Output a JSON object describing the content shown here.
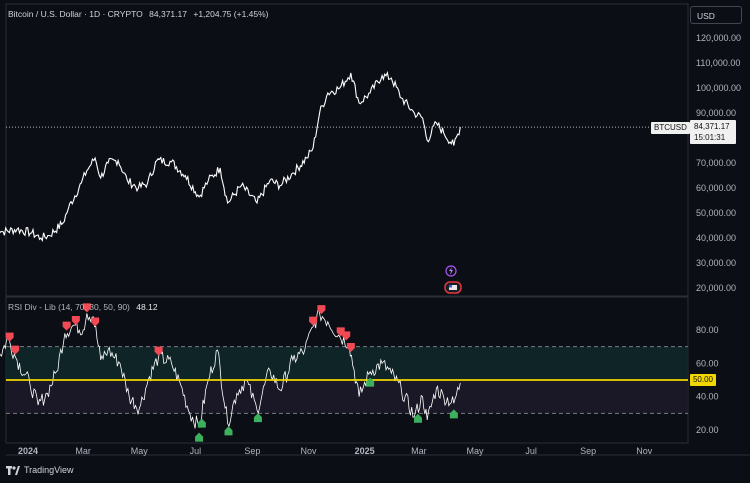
{
  "symbol": {
    "name": "Bitcoin / U.S. Dollar · 1D · CRYPTO",
    "last": "84,371.17",
    "change": "+1,204.75 (+1.45%)",
    "currency": "USD",
    "ticker_label": "BTCUSD",
    "price_label": "84,371.17",
    "countdown": "15:01:31"
  },
  "indicator": {
    "name": "RSI Div - Lib (14, 70, 30, 50, 90)",
    "value": "48.12",
    "level_label": "50.00"
  },
  "footer": {
    "brand": "TradingView"
  },
  "colors": {
    "background": "#0c0e15",
    "price_line": "#ffffff",
    "rsi_line": "#ffffff",
    "rsi_midline": "#f2d600",
    "bear_marker": "#f24a55",
    "bull_marker": "#3cb05c",
    "band_fill": "#0f2a2a"
  },
  "chart_data": [
    {
      "type": "line",
      "series_label": "BTCUSD",
      "x_type": "date",
      "x_ticks": [
        "2024",
        "Mar",
        "May",
        "Jul",
        "Sep",
        "Nov",
        "2025",
        "Mar",
        "May",
        "Jul",
        "Sep",
        "Nov"
      ],
      "x_tick_dates": [
        "2024-01-01",
        "2024-03-01",
        "2024-05-01",
        "2024-07-01",
        "2024-09-01",
        "2024-11-01",
        "2025-01-01",
        "2025-03-01",
        "2025-05-01",
        "2025-07-01",
        "2025-09-01",
        "2025-11-01"
      ],
      "y_ticks": [
        "20,000.00",
        "30,000.00",
        "40,000.00",
        "50,000.00",
        "60,000.00",
        "70,000.00",
        "80,000.00",
        "90,000.00",
        "100,000.00",
        "110,000.00",
        "120,000.00"
      ],
      "ylim": [
        15000,
        125000
      ],
      "points": [
        [
          "2023-11-25",
          43000
        ],
        [
          "2023-12-05",
          42500
        ],
        [
          "2023-12-20",
          43500
        ],
        [
          "2024-01-05",
          42000
        ],
        [
          "2024-01-15",
          40000
        ],
        [
          "2024-01-24",
          41000
        ],
        [
          "2024-02-08",
          46000
        ],
        [
          "2024-02-14",
          52000
        ],
        [
          "2024-02-28",
          62000
        ],
        [
          "2024-03-05",
          67000
        ],
        [
          "2024-03-14",
          72000
        ],
        [
          "2024-03-20",
          64000
        ],
        [
          "2024-03-28",
          70000
        ],
        [
          "2024-04-08",
          71000
        ],
        [
          "2024-04-18",
          63000
        ],
        [
          "2024-04-30",
          60000
        ],
        [
          "2024-05-10",
          62000
        ],
        [
          "2024-05-20",
          71000
        ],
        [
          "2024-06-05",
          70500
        ],
        [
          "2024-06-20",
          65000
        ],
        [
          "2024-07-05",
          56500
        ],
        [
          "2024-07-15",
          63000
        ],
        [
          "2024-07-28",
          68000
        ],
        [
          "2024-08-05",
          54000
        ],
        [
          "2024-08-20",
          61000
        ],
        [
          "2024-09-06",
          54000
        ],
        [
          "2024-09-20",
          63000
        ],
        [
          "2024-10-01",
          61000
        ],
        [
          "2024-10-15",
          66000
        ],
        [
          "2024-10-30",
          72000
        ],
        [
          "2024-11-06",
          76000
        ],
        [
          "2024-11-13",
          90000
        ],
        [
          "2024-11-22",
          98000
        ],
        [
          "2024-12-05",
          100000
        ],
        [
          "2024-12-17",
          106000
        ],
        [
          "2024-12-26",
          94000
        ],
        [
          "2025-01-07",
          98000
        ],
        [
          "2025-01-20",
          105000
        ],
        [
          "2025-01-30",
          104000
        ],
        [
          "2025-02-10",
          96000
        ],
        [
          "2025-02-24",
          90000
        ],
        [
          "2025-03-05",
          88000
        ],
        [
          "2025-03-10",
          79000
        ],
        [
          "2025-03-20",
          86000
        ],
        [
          "2025-03-28",
          82000
        ],
        [
          "2025-04-08",
          77000
        ],
        [
          "2025-04-15",
          84371
        ]
      ],
      "last_value": 84371.17
    },
    {
      "type": "line",
      "series_label": "RSI Div - Lib (14, 70, 30, 50, 90)",
      "x_type": "date",
      "y_ticks": [
        "20.00",
        "40.00",
        "60.00",
        "80.00"
      ],
      "ylim": [
        15,
        95
      ],
      "levels": {
        "upper": 70,
        "lower": 30,
        "mid": 50
      },
      "points": [
        [
          "2023-11-25",
          82
        ],
        [
          "2023-12-02",
          65
        ],
        [
          "2023-12-10",
          75
        ],
        [
          "2023-12-20",
          62
        ],
        [
          "2024-01-03",
          48
        ],
        [
          "2024-01-12",
          35
        ],
        [
          "2024-01-22",
          42
        ],
        [
          "2024-02-01",
          55
        ],
        [
          "2024-02-10",
          78
        ],
        [
          "2024-02-20",
          83
        ],
        [
          "2024-03-01",
          80
        ],
        [
          "2024-03-05",
          90
        ],
        [
          "2024-03-12",
          88
        ],
        [
          "2024-03-20",
          62
        ],
        [
          "2024-03-28",
          68
        ],
        [
          "2024-04-10",
          60
        ],
        [
          "2024-04-20",
          40
        ],
        [
          "2024-05-01",
          33
        ],
        [
          "2024-05-12",
          52
        ],
        [
          "2024-05-22",
          64
        ],
        [
          "2024-06-05",
          60
        ],
        [
          "2024-06-15",
          47
        ],
        [
          "2024-06-25",
          30
        ],
        [
          "2024-07-05",
          22
        ],
        [
          "2024-07-15",
          50
        ],
        [
          "2024-07-25",
          68
        ],
        [
          "2024-08-05",
          24
        ],
        [
          "2024-08-15",
          42
        ],
        [
          "2024-08-25",
          50
        ],
        [
          "2024-09-06",
          32
        ],
        [
          "2024-09-20",
          56
        ],
        [
          "2024-10-01",
          44
        ],
        [
          "2024-10-15",
          62
        ],
        [
          "2024-10-28",
          68
        ],
        [
          "2024-11-06",
          82
        ],
        [
          "2024-11-13",
          90
        ],
        [
          "2024-11-22",
          85
        ],
        [
          "2024-12-05",
          76
        ],
        [
          "2024-12-15",
          72
        ],
        [
          "2024-12-26",
          40
        ],
        [
          "2025-01-07",
          55
        ],
        [
          "2025-01-20",
          60
        ],
        [
          "2025-01-30",
          54
        ],
        [
          "2025-02-10",
          44
        ],
        [
          "2025-02-24",
          28
        ],
        [
          "2025-03-05",
          40
        ],
        [
          "2025-03-10",
          26
        ],
        [
          "2025-03-20",
          45
        ],
        [
          "2025-03-28",
          40
        ],
        [
          "2025-04-08",
          36
        ],
        [
          "2025-04-15",
          48.12
        ]
      ],
      "bear_divergences": [
        "2023-11-26",
        "2023-12-12",
        "2023-12-18",
        "2024-02-12",
        "2024-02-22",
        "2024-03-05",
        "2024-03-14",
        "2024-05-22",
        "2024-11-06",
        "2024-11-15",
        "2024-12-06",
        "2024-12-12",
        "2024-12-17"
      ],
      "bull_divergences": [
        "2024-07-05",
        "2024-07-08",
        "2024-08-06",
        "2024-09-07",
        "2025-01-07",
        "2025-02-28",
        "2025-04-08"
      ]
    }
  ]
}
